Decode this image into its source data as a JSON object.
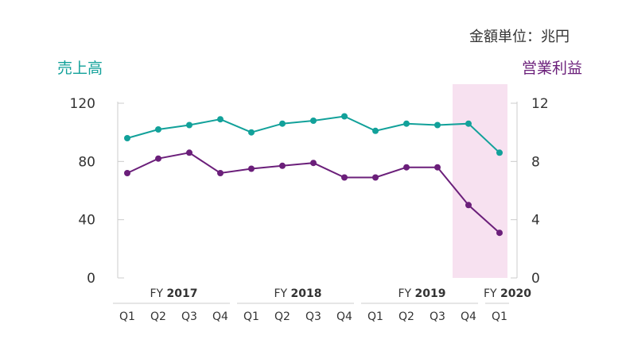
{
  "chart_data": {
    "type": "line",
    "unit_note": "金額単位：兆円",
    "categories": [
      "Q1",
      "Q2",
      "Q3",
      "Q4",
      "Q1",
      "Q2",
      "Q3",
      "Q4",
      "Q1",
      "Q2",
      "Q3",
      "Q4",
      "Q1"
    ],
    "fiscal_years": [
      {
        "label": "FY",
        "year": "2017",
        "quarters": 4
      },
      {
        "label": "FY",
        "year": "2018",
        "quarters": 4
      },
      {
        "label": "FY",
        "year": "2019",
        "quarters": 4
      },
      {
        "label": "FY",
        "year": "2020",
        "quarters": 1
      }
    ],
    "left_axis": {
      "label": "売上高",
      "ylim": [
        0,
        120
      ],
      "ticks": [
        "0",
        "40",
        "80",
        "120"
      ]
    },
    "right_axis": {
      "label": "営業利益",
      "ylim": [
        0,
        12
      ],
      "ticks": [
        "0",
        "4",
        "8",
        "12"
      ]
    },
    "series": [
      {
        "name": "売上高",
        "axis": "left",
        "color": "#12a19a",
        "values": [
          96,
          102,
          105,
          109,
          100,
          106,
          108,
          111,
          101,
          106,
          105,
          106,
          86
        ]
      },
      {
        "name": "営業利益",
        "axis": "right",
        "color": "#6b1f7a",
        "values": [
          7.2,
          8.2,
          8.6,
          7.2,
          7.5,
          7.7,
          7.9,
          6.9,
          6.9,
          7.6,
          7.6,
          5.0,
          3.1
        ]
      }
    ],
    "highlight": {
      "from_index": 11,
      "to_index": 12,
      "color": "#f7e1f0"
    },
    "grid": false
  }
}
